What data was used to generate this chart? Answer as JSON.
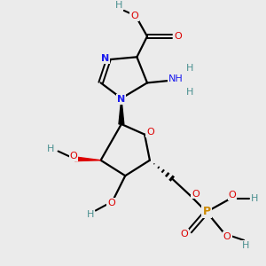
{
  "background_color": "#ebebeb",
  "atom_colors": {
    "C": "#000000",
    "N": "#1a1aee",
    "O": "#dd0000",
    "P": "#cc8800",
    "H": "#4a9090"
  },
  "bond_color": "#000000",
  "figsize": [
    3.0,
    3.0
  ],
  "dpi": 100
}
